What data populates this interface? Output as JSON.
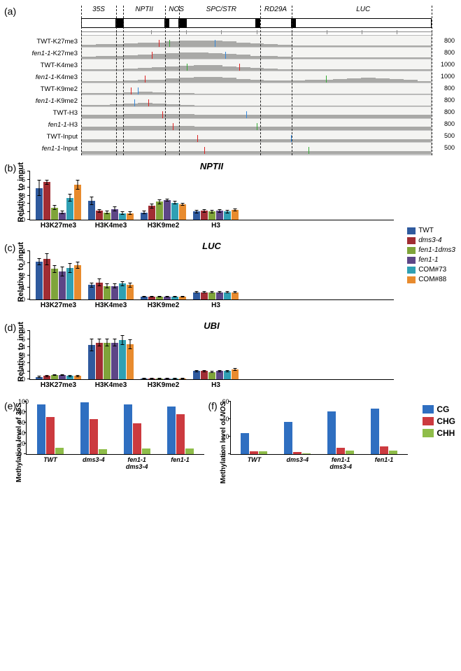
{
  "colors": {
    "TWT": "#2f5a9e",
    "dms3-4": "#a12d33",
    "fen1-1dms3": "#7fa43a",
    "fen1-1": "#5d4687",
    "COM73": "#2fa0b4",
    "COM88": "#e88b2e",
    "CG": "#2f6fc1",
    "CHG": "#cc3a3f",
    "CHH": "#8fbd4a",
    "track_fill": "#a9a9a7"
  },
  "panel_a": {
    "label": "(a)",
    "regions": [
      {
        "name": "35S",
        "width": 10
      },
      {
        "name": "",
        "width": 2
      },
      {
        "name": "NPTII",
        "width": 12
      },
      {
        "name": "",
        "width": 1
      },
      {
        "name": "NOS",
        "width": 3
      },
      {
        "name": "",
        "width": 2
      },
      {
        "name": "SPC/STR",
        "width": 20
      },
      {
        "name": "",
        "width": 1
      },
      {
        "name": "RD29A",
        "width": 9
      },
      {
        "name": "",
        "width": 1
      },
      {
        "name": "LUC",
        "width": 39
      }
    ],
    "vlines_at": [
      0,
      10,
      12,
      24,
      28,
      51,
      60,
      100
    ],
    "tracks": [
      {
        "name": "TWT-K27me3",
        "max": "800",
        "profile": [
          18,
          25,
          22,
          30,
          35,
          40,
          50,
          55,
          58,
          55,
          50,
          40,
          30,
          25,
          18,
          12,
          10,
          10,
          10,
          10,
          10,
          10,
          10,
          10,
          10
        ],
        "spikes": [
          {
            "x": 22,
            "c": "#d22"
          },
          {
            "x": 25,
            "c": "#3a3"
          },
          {
            "x": 38,
            "c": "#38d"
          }
        ]
      },
      {
        "name": "<i>fen1-1</i>-K27me3",
        "max": "800",
        "profile": [
          16,
          22,
          24,
          30,
          36,
          44,
          52,
          55,
          56,
          52,
          46,
          36,
          28,
          22,
          16,
          12,
          10,
          10,
          10,
          10,
          10,
          10,
          10,
          10,
          10
        ],
        "spikes": [
          {
            "x": 20,
            "c": "#d22"
          },
          {
            "x": 41,
            "c": "#38d"
          }
        ]
      },
      {
        "name": "TWT-K4me3",
        "max": "1000",
        "profile": [
          10,
          12,
          14,
          18,
          25,
          30,
          36,
          45,
          50,
          48,
          40,
          30,
          22,
          16,
          12,
          10,
          10,
          10,
          10,
          10,
          10,
          10,
          10,
          10,
          10
        ],
        "spikes": [
          {
            "x": 30,
            "c": "#3a3"
          },
          {
            "x": 45,
            "c": "#d22"
          }
        ]
      },
      {
        "name": "<i>fen1-1</i>-K4me3",
        "max": "1000",
        "profile": [
          10,
          11,
          13,
          16,
          22,
          28,
          35,
          44,
          50,
          48,
          42,
          32,
          24,
          18,
          16,
          18,
          22,
          28,
          34,
          40,
          42,
          40,
          34,
          24,
          14
        ],
        "spikes": [
          {
            "x": 18,
            "c": "#d22"
          },
          {
            "x": 70,
            "c": "#3a3"
          }
        ]
      },
      {
        "name": "TWT-K9me2",
        "max": "800",
        "profile": [
          10,
          12,
          14,
          20,
          24,
          20,
          14,
          10,
          8,
          8,
          8,
          8,
          8,
          8,
          8,
          8,
          8,
          8,
          8,
          8,
          8,
          8,
          8,
          8,
          8
        ],
        "spikes": [
          {
            "x": 14,
            "c": "#d22"
          },
          {
            "x": 16,
            "c": "#38d"
          }
        ]
      },
      {
        "name": "<i>fen1-1</i>-K9me2",
        "max": "800",
        "profile": [
          10,
          14,
          18,
          26,
          30,
          24,
          16,
          10,
          8,
          8,
          8,
          8,
          8,
          8,
          8,
          8,
          8,
          8,
          8,
          8,
          8,
          8,
          8,
          8,
          8
        ],
        "spikes": [
          {
            "x": 15,
            "c": "#38d"
          },
          {
            "x": 19,
            "c": "#d22"
          }
        ]
      },
      {
        "name": "TWT-H3",
        "max": "800",
        "profile": [
          30,
          32,
          34,
          36,
          38,
          38,
          38,
          36,
          34,
          34,
          34,
          34,
          34,
          34,
          34,
          34,
          34,
          34,
          34,
          34,
          34,
          34,
          34,
          34,
          34
        ],
        "spikes": [
          {
            "x": 23,
            "c": "#d22"
          },
          {
            "x": 47,
            "c": "#38d"
          }
        ]
      },
      {
        "name": "<i>fen1-1</i>-H3",
        "max": "800",
        "profile": [
          30,
          32,
          34,
          36,
          38,
          38,
          38,
          36,
          34,
          34,
          34,
          34,
          34,
          34,
          34,
          34,
          34,
          34,
          34,
          34,
          34,
          34,
          34,
          34,
          34
        ],
        "spikes": [
          {
            "x": 26,
            "c": "#d22"
          },
          {
            "x": 50,
            "c": "#3a3"
          }
        ]
      },
      {
        "name": "TWT-Input",
        "max": "500",
        "profile": [
          26,
          26,
          26,
          26,
          26,
          26,
          26,
          26,
          26,
          26,
          26,
          26,
          26,
          26,
          26,
          26,
          26,
          26,
          26,
          26,
          26,
          26,
          26,
          26,
          26
        ],
        "spikes": [
          {
            "x": 33,
            "c": "#d22"
          },
          {
            "x": 60,
            "c": "#38d"
          }
        ]
      },
      {
        "name": "<i>fen1-1</i>-Input",
        "max": "500",
        "profile": [
          26,
          26,
          26,
          26,
          26,
          26,
          26,
          26,
          26,
          26,
          26,
          26,
          26,
          26,
          26,
          26,
          26,
          26,
          26,
          26,
          26,
          26,
          26,
          26,
          26
        ],
        "spikes": [
          {
            "x": 35,
            "c": "#d22"
          },
          {
            "x": 65,
            "c": "#3a3"
          }
        ]
      }
    ]
  },
  "chip_legend": [
    {
      "label": "TWT",
      "color_key": "TWT",
      "italic": false
    },
    {
      "label": "dms3-4",
      "color_key": "dms3-4",
      "italic": true
    },
    {
      "label": "fen1-1dms3",
      "color_key": "fen1-1dms3",
      "italic": true
    },
    {
      "label": "fen1-1",
      "color_key": "fen1-1",
      "italic": true
    },
    {
      "label": "COM#73",
      "color_key": "COM73",
      "italic": false
    },
    {
      "label": "COM#88",
      "color_key": "COM88",
      "italic": false
    }
  ],
  "chip_panels": [
    {
      "label": "(b)",
      "title": "NPTII",
      "ymax": 6,
      "ystep": 1,
      "xcats": [
        "H3K27me3",
        "H3K4me3",
        "H3K9me2",
        "H3"
      ],
      "series": [
        "TWT",
        "dms3-4",
        "fen1-1dms3",
        "fen1-1",
        "COM73",
        "COM88"
      ],
      "values": [
        [
          3.9,
          4.6,
          1.5,
          0.9,
          2.7,
          4.3
        ],
        [
          2.3,
          1.1,
          0.9,
          1.3,
          0.8,
          0.8
        ],
        [
          0.9,
          1.7,
          2.2,
          2.4,
          2.1,
          1.9
        ],
        [
          1.0,
          1.1,
          1.0,
          1.1,
          1.0,
          1.2
        ]
      ],
      "errors": [
        [
          1.0,
          0.3,
          0.3,
          0.2,
          0.5,
          0.6
        ],
        [
          0.5,
          0.2,
          0.2,
          0.3,
          0.2,
          0.2
        ],
        [
          0.2,
          0.3,
          0.3,
          0.2,
          0.2,
          0.2
        ],
        [
          0.2,
          0.2,
          0.2,
          0.2,
          0.2,
          0.2
        ]
      ]
    },
    {
      "label": "(c)",
      "title": "LUC",
      "ymax": 4,
      "ystep": 1,
      "xcats": [
        "H3K27me3",
        "H3K4me3",
        "H3K9me2",
        "H3"
      ],
      "series": [
        "TWT",
        "dms3-4",
        "fen1-1dms3",
        "fen1-1",
        "COM73",
        "COM88"
      ],
      "values": [
        [
          3.1,
          3.3,
          2.5,
          2.3,
          2.6,
          2.8
        ],
        [
          1.2,
          1.4,
          1.1,
          1.1,
          1.3,
          1.2
        ],
        [
          0.25,
          0.25,
          0.25,
          0.25,
          0.25,
          0.25
        ],
        [
          0.6,
          0.6,
          0.6,
          0.6,
          0.6,
          0.6
        ]
      ],
      "errors": [
        [
          0.3,
          0.5,
          0.3,
          0.4,
          0.4,
          0.3
        ],
        [
          0.2,
          0.3,
          0.2,
          0.2,
          0.2,
          0.2
        ],
        [
          0.05,
          0.05,
          0.05,
          0.05,
          0.05,
          0.05
        ],
        [
          0.08,
          0.08,
          0.08,
          0.08,
          0.08,
          0.08
        ]
      ]
    },
    {
      "label": "(d)",
      "title": "UBI",
      "ymax": 6,
      "ystep": 1,
      "xcats": [
        "H3K27me3",
        "H3K4me3",
        "H3K9me2",
        "H3"
      ],
      "series": [
        "TWT",
        "dms3-4",
        "fen1-1dms3",
        "fen1-1",
        "COM73",
        "COM88"
      ],
      "values": [
        [
          0.3,
          0.4,
          0.5,
          0.5,
          0.4,
          0.4
        ],
        [
          4.2,
          4.5,
          4.5,
          4.5,
          4.8,
          4.3
        ],
        [
          0.1,
          0.1,
          0.1,
          0.1,
          0.1,
          0.1
        ],
        [
          1.0,
          1.0,
          0.9,
          1.0,
          1.0,
          1.2
        ]
      ],
      "errors": [
        [
          0.1,
          0.1,
          0.1,
          0.1,
          0.1,
          0.1
        ],
        [
          0.8,
          0.5,
          0.5,
          0.5,
          0.6,
          0.6
        ],
        [
          0.03,
          0.03,
          0.03,
          0.03,
          0.03,
          0.03
        ],
        [
          0.1,
          0.1,
          0.1,
          0.1,
          0.1,
          0.15
        ]
      ]
    }
  ],
  "meth_legend": [
    {
      "label": "CG",
      "color_key": "CG"
    },
    {
      "label": "CHG",
      "color_key": "CHG"
    },
    {
      "label": "CHH",
      "color_key": "CHH"
    }
  ],
  "meth_panels": [
    {
      "label": "(e)",
      "ylabel": "Methylation level of <i>35S</i>",
      "ymax": 100,
      "ystep": 20,
      "xcats": [
        "TWT",
        "dms3-4",
        "fen1-1\ndms3-4",
        "fen1-1"
      ],
      "values": [
        [
          93,
          70,
          12
        ],
        [
          97,
          66,
          9
        ],
        [
          93,
          58,
          11
        ],
        [
          90,
          75,
          10
        ]
      ]
    },
    {
      "label": "(f)",
      "ylabel": "Methylation level of <i>NOS</i>",
      "ymax": 60,
      "ystep": 20,
      "xcats": [
        "TWT",
        "dms3-4",
        "fen1-1\ndms3-4",
        "fen1-1"
      ],
      "values": [
        [
          24,
          3,
          3
        ],
        [
          36,
          2,
          1
        ],
        [
          48,
          7,
          4
        ],
        [
          51,
          9,
          4
        ]
      ]
    }
  ],
  "ylabel_chip": "Relative to input"
}
